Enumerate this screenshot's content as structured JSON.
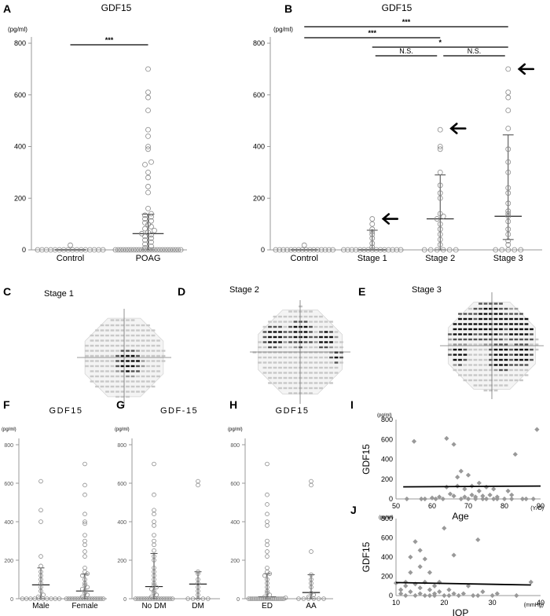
{
  "panels": {
    "A": "A",
    "B": "B",
    "C": "C",
    "D": "D",
    "E": "E",
    "F": "F",
    "G": "G",
    "H": "H",
    "I": "I",
    "J": "J"
  },
  "chart_data": [
    {
      "id": "A",
      "type": "scatter",
      "title": "GDF15",
      "unit": "(pg/ml)",
      "yticks": [
        0,
        200,
        400,
        600,
        800
      ],
      "ylim": [
        0,
        800
      ],
      "categories": [
        "Control",
        "POAG"
      ],
      "groups": [
        {
          "name": "Control",
          "median": 0,
          "q1": 0,
          "q3": 0,
          "points": [
            0,
            0,
            0,
            0,
            0,
            0,
            0,
            0,
            0,
            0,
            0,
            0,
            0,
            0,
            0,
            0,
            18
          ]
        },
        {
          "name": "POAG",
          "median": 63,
          "q1": 0,
          "q3": 138,
          "points": [
            0,
            0,
            0,
            0,
            0,
            0,
            0,
            0,
            0,
            0,
            0,
            0,
            0,
            0,
            0,
            0,
            0,
            0,
            0,
            0,
            0,
            0,
            0,
            0,
            0,
            0,
            8,
            14,
            22,
            30,
            38,
            45,
            52,
            58,
            63,
            68,
            75,
            82,
            90,
            98,
            105,
            112,
            120,
            128,
            134,
            140,
            160,
            222,
            245,
            280,
            300,
            330,
            340,
            390,
            400,
            440,
            465,
            540,
            590,
            610,
            700
          ]
        }
      ],
      "significance": [
        {
          "from": 0,
          "to": 1,
          "label": "***"
        }
      ]
    },
    {
      "id": "B",
      "type": "scatter",
      "title": "GDF15",
      "unit": "(pg/ml)",
      "yticks": [
        0,
        200,
        400,
        600,
        800
      ],
      "ylim": [
        0,
        800
      ],
      "categories": [
        "Control",
        "Stage 1",
        "Stage 2",
        "Stage 3"
      ],
      "groups": [
        {
          "name": "Control",
          "median": 0,
          "q1": 0,
          "q3": 0,
          "points": [
            0,
            0,
            0,
            0,
            0,
            0,
            0,
            0,
            0,
            0,
            0,
            0,
            0,
            0,
            0,
            0,
            18
          ]
        },
        {
          "name": "Stage 1",
          "median": 0,
          "q1": 0,
          "q3": 76,
          "points": [
            0,
            0,
            0,
            0,
            0,
            0,
            0,
            0,
            0,
            0,
            0,
            0,
            0,
            0,
            0,
            10,
            25,
            45,
            60,
            70,
            80,
            100,
            120
          ]
        },
        {
          "name": "Stage 2",
          "median": 120,
          "q1": 0,
          "q3": 290,
          "points": [
            0,
            0,
            0,
            0,
            0,
            0,
            20,
            40,
            60,
            80,
            100,
            120,
            130,
            140,
            200,
            220,
            250,
            300,
            390,
            400,
            465
          ]
        },
        {
          "name": "Stage 3",
          "median": 130,
          "q1": 40,
          "q3": 445,
          "points": [
            0,
            0,
            0,
            0,
            0,
            20,
            35,
            60,
            80,
            110,
            130,
            140,
            150,
            180,
            220,
            240,
            300,
            340,
            390,
            470,
            540,
            590,
            610,
            700
          ]
        }
      ],
      "significance": [
        {
          "from": 0,
          "to": 3,
          "label": "***"
        },
        {
          "from": 0,
          "to": 2,
          "label": "***"
        },
        {
          "from": 1,
          "to": 2,
          "label": "N.S."
        },
        {
          "from": 1,
          "to": 3,
          "label": "*"
        },
        {
          "from": 2,
          "to": 3,
          "label": "N.S."
        }
      ],
      "arrows": [
        120,
        470,
        700
      ]
    },
    {
      "id": "F",
      "type": "scatter",
      "title": "GDF15",
      "unit": "(pg/ml)",
      "yticks": [
        0,
        200,
        400,
        600,
        800
      ],
      "ylim": [
        0,
        800
      ],
      "categories": [
        "Male",
        "Female"
      ],
      "groups": [
        {
          "name": "Male",
          "median": 72,
          "q1": 0,
          "q3": 160,
          "points": [
            0,
            0,
            0,
            0,
            0,
            0,
            0,
            0,
            0,
            0,
            10,
            20,
            40,
            60,
            80,
            100,
            120,
            140,
            170,
            220,
            400,
            460,
            610
          ]
        },
        {
          "name": "Female",
          "median": 40,
          "q1": 0,
          "q3": 128,
          "points": [
            0,
            0,
            0,
            0,
            0,
            0,
            0,
            0,
            0,
            0,
            0,
            0,
            0,
            0,
            0,
            0,
            0,
            0,
            10,
            20,
            30,
            40,
            50,
            60,
            70,
            80,
            100,
            120,
            130,
            140,
            160,
            220,
            245,
            280,
            300,
            330,
            390,
            400,
            440,
            540,
            590,
            700
          ]
        }
      ]
    },
    {
      "id": "G",
      "type": "scatter",
      "title": "GDF-15",
      "unit": "(pg/ml)",
      "yticks": [
        0,
        200,
        400,
        600,
        800
      ],
      "ylim": [
        0,
        800
      ],
      "categories": [
        "No DM",
        "DM"
      ],
      "groups": [
        {
          "name": "No DM",
          "median": 63,
          "q1": 0,
          "q3": 235,
          "points": [
            0,
            0,
            0,
            0,
            0,
            0,
            0,
            0,
            0,
            0,
            0,
            0,
            0,
            0,
            0,
            0,
            0,
            0,
            10,
            20,
            30,
            40,
            50,
            60,
            70,
            80,
            100,
            120,
            140,
            160,
            200,
            220,
            250,
            280,
            300,
            330,
            380,
            400,
            440,
            460,
            540,
            700
          ]
        },
        {
          "name": "DM",
          "median": 76,
          "q1": 0,
          "q3": 140,
          "points": [
            0,
            0,
            0,
            0,
            0,
            20,
            40,
            60,
            80,
            100,
            130,
            140,
            590,
            610
          ]
        }
      ]
    },
    {
      "id": "H",
      "type": "scatter",
      "title": "GDF15",
      "unit": "(pg/ml)",
      "yticks": [
        0,
        200,
        400,
        600,
        800
      ],
      "ylim": [
        0,
        800
      ],
      "categories": [
        "ED",
        "AA"
      ],
      "groups": [
        {
          "name": "ED",
          "median": 10,
          "q1": 0,
          "q3": 130,
          "points": [
            0,
            0,
            0,
            0,
            0,
            0,
            0,
            0,
            0,
            0,
            0,
            0,
            0,
            0,
            0,
            0,
            0,
            0,
            0,
            0,
            5,
            10,
            20,
            30,
            40,
            60,
            80,
            100,
            120,
            130,
            140,
            160,
            220,
            245,
            280,
            300,
            380,
            400,
            440,
            490,
            540,
            700
          ]
        },
        {
          "name": "AA",
          "median": 32,
          "q1": 0,
          "q3": 125,
          "points": [
            0,
            0,
            0,
            0,
            0,
            0,
            10,
            20,
            30,
            60,
            80,
            100,
            125,
            245,
            590,
            610
          ]
        }
      ]
    },
    {
      "id": "I",
      "type": "scatter",
      "unit": "(pg/ml)",
      "ylabel": "GDF15",
      "xlabel": "Age",
      "xunit": "(Y/O)",
      "xlim": [
        50,
        90
      ],
      "ylim": [
        0,
        800
      ],
      "xticks": [
        50,
        60,
        70,
        80,
        90
      ],
      "yticks": [
        0,
        200,
        400,
        600,
        800
      ],
      "trend": [
        [
          52,
          122
        ],
        [
          90,
          130
        ]
      ],
      "points": [
        [
          53,
          0
        ],
        [
          55,
          580
        ],
        [
          57,
          0
        ],
        [
          58,
          0
        ],
        [
          60,
          10
        ],
        [
          61,
          0
        ],
        [
          62,
          20
        ],
        [
          63,
          0
        ],
        [
          64,
          610
        ],
        [
          64,
          120
        ],
        [
          65,
          50
        ],
        [
          66,
          30
        ],
        [
          66,
          550
        ],
        [
          67,
          220
        ],
        [
          67,
          130
        ],
        [
          68,
          0
        ],
        [
          68,
          280
        ],
        [
          69,
          20
        ],
        [
          69,
          100
        ],
        [
          70,
          0
        ],
        [
          70,
          240
        ],
        [
          71,
          130
        ],
        [
          71,
          40
        ],
        [
          72,
          0
        ],
        [
          72,
          20
        ],
        [
          73,
          80
        ],
        [
          73,
          160
        ],
        [
          74,
          0
        ],
        [
          74,
          30
        ],
        [
          75,
          120
        ],
        [
          75,
          0
        ],
        [
          76,
          40
        ],
        [
          77,
          0
        ],
        [
          77,
          100
        ],
        [
          78,
          0
        ],
        [
          78,
          20
        ],
        [
          80,
          0
        ],
        [
          81,
          80
        ],
        [
          82,
          40
        ],
        [
          82,
          0
        ],
        [
          83,
          450
        ],
        [
          85,
          0
        ],
        [
          86,
          0
        ],
        [
          88,
          0
        ],
        [
          89,
          700
        ]
      ]
    },
    {
      "id": "J",
      "type": "scatter",
      "unit": "(pg/ml)",
      "ylabel": "GDF15",
      "xlabel": "IOP",
      "xunit": "(mmHg)",
      "xlim": [
        10,
        40
      ],
      "ylim": [
        0,
        800
      ],
      "xticks": [
        10,
        20,
        30,
        40
      ],
      "yticks": [
        0,
        200,
        400,
        600,
        800
      ],
      "trend": [
        [
          10,
          135
        ],
        [
          38,
          110
        ]
      ],
      "points": [
        [
          10,
          130
        ],
        [
          11,
          60
        ],
        [
          11,
          20
        ],
        [
          12,
          100
        ],
        [
          12,
          140
        ],
        [
          12,
          0
        ],
        [
          13,
          40
        ],
        [
          13,
          240
        ],
        [
          13,
          400
        ],
        [
          14,
          120
        ],
        [
          14,
          0
        ],
        [
          14,
          560
        ],
        [
          15,
          300
        ],
        [
          15,
          80
        ],
        [
          15,
          470
        ],
        [
          15,
          20
        ],
        [
          16,
          140
        ],
        [
          16,
          0
        ],
        [
          16,
          380
        ],
        [
          17,
          60
        ],
        [
          17,
          240
        ],
        [
          17,
          0
        ],
        [
          18,
          100
        ],
        [
          18,
          20
        ],
        [
          18,
          0
        ],
        [
          19,
          140
        ],
        [
          19,
          40
        ],
        [
          20,
          700
        ],
        [
          20,
          0
        ],
        [
          21,
          0
        ],
        [
          21,
          60
        ],
        [
          22,
          20
        ],
        [
          22,
          420
        ],
        [
          23,
          0
        ],
        [
          24,
          20
        ],
        [
          25,
          100
        ],
        [
          26,
          0
        ],
        [
          27,
          580
        ],
        [
          27,
          0
        ],
        [
          28,
          40
        ],
        [
          30,
          0
        ],
        [
          31,
          20
        ],
        [
          35,
          0
        ],
        [
          38,
          140
        ]
      ]
    }
  ],
  "visual_fields": [
    {
      "id": "C",
      "label": "Stage 1",
      "defects": [
        [
          0.55,
          0.55,
          0.18
        ]
      ]
    },
    {
      "id": "D",
      "label": "Stage 2",
      "defects": [
        [
          0.22,
          0.33,
          0.14
        ],
        [
          0.5,
          0.3,
          0.16
        ],
        [
          0.78,
          0.35,
          0.12
        ],
        [
          0.9,
          0.55,
          0.08
        ]
      ]
    },
    {
      "id": "E",
      "label": "Stage 3",
      "defects": [
        [
          0.2,
          0.3,
          0.2
        ],
        [
          0.5,
          0.25,
          0.25
        ],
        [
          0.8,
          0.3,
          0.2
        ],
        [
          0.15,
          0.6,
          0.12
        ],
        [
          0.6,
          0.62,
          0.16
        ],
        [
          0.82,
          0.6,
          0.14
        ]
      ]
    }
  ]
}
